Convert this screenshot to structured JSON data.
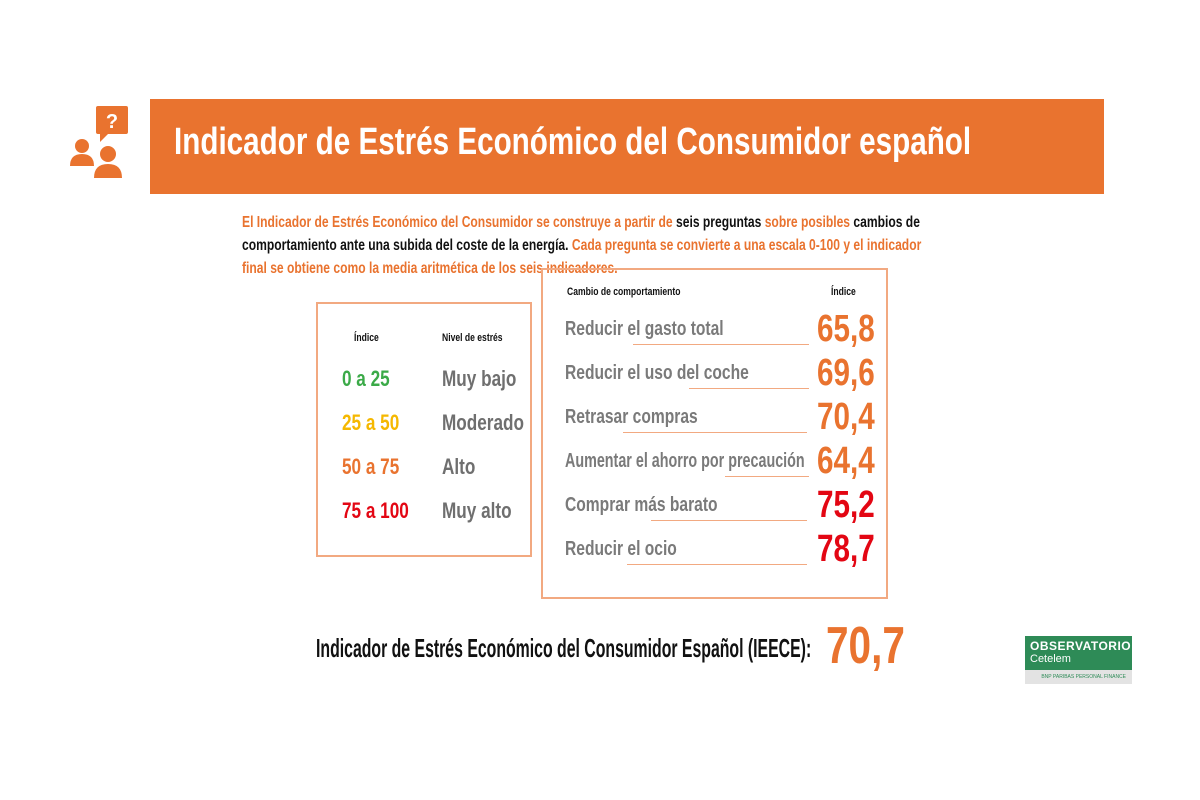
{
  "title": "Indicador de Estrés Económico del Consumidor español",
  "intro": [
    {
      "t": "El Indicador de Estrés Económico del Consumidor se construye a partir de ",
      "c": "o"
    },
    {
      "t": "seis preguntas ",
      "c": "k"
    },
    {
      "t": "sobre posibles ",
      "c": "o"
    },
    {
      "t": "cambios de comportamiento ante una subida del coste de la energía. ",
      "c": "k"
    },
    {
      "t": "Cada pregunta se convierte a una escala 0-100 y el indicador final se obtiene como la media aritmética de los seis indicadores.",
      "c": "o"
    }
  ],
  "levels": {
    "header_index": "Índice",
    "header_level": "Nivel de estrés",
    "rows": [
      {
        "range": "0 a 25",
        "level": "Muy bajo",
        "color": "#3BAA48"
      },
      {
        "range": "25 a 50",
        "level": "Moderado",
        "color": "#F5B800"
      },
      {
        "range": "50 a 75",
        "level": "Alto",
        "color": "#E9732F"
      },
      {
        "range": "75 a 100",
        "level": "Muy alto",
        "color": "#E30613"
      }
    ]
  },
  "changes": {
    "header_change": "Cambio de comportamiento",
    "header_index": "Índice",
    "rows": [
      {
        "label": "Reducir el gasto total",
        "value": "65,8",
        "color": "#E9732F"
      },
      {
        "label": "Reducir el uso del coche",
        "value": "69,6",
        "color": "#E9732F"
      },
      {
        "label": "Retrasar compras",
        "value": "70,4",
        "color": "#E9732F"
      },
      {
        "label": "Aumentar el ahorro por precaución",
        "value": "64,4",
        "color": "#E9732F"
      },
      {
        "label": "Comprar más barato",
        "value": "75,2",
        "color": "#E30613"
      },
      {
        "label": "Reducir el ocio",
        "value": "78,7",
        "color": "#E30613"
      }
    ]
  },
  "final": {
    "label": "Indicador de Estrés Económico del Consumidor Español (IEECE):",
    "value": "70,7"
  },
  "logo": {
    "line1": "OBSERVATORIO",
    "line2": "Cetelem",
    "sub": "BNP PARIBAS PERSONAL FINANCE"
  }
}
